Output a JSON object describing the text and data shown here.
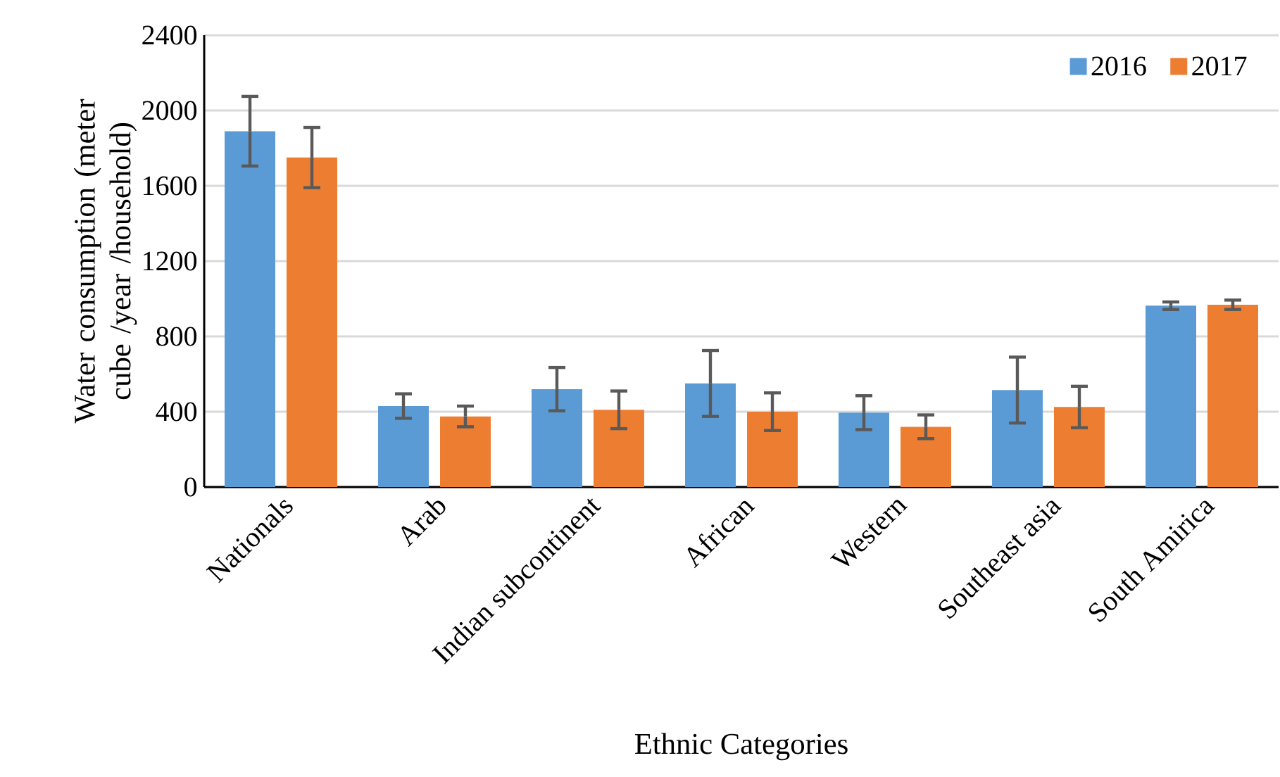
{
  "chart_data": {
    "type": "bar",
    "xlabel": "Ethnic Categories",
    "ylabel": "Water consumption (meter cube /year /household)",
    "categories": [
      "Nationals",
      "Arab",
      "Indian subcontinent",
      "African",
      "Western",
      "Southeast asia",
      "South Amirica"
    ],
    "series": [
      {
        "name": "2016",
        "color": "#5b9bd5",
        "values": [
          1890,
          430,
          520,
          550,
          395,
          515,
          963
        ],
        "errors": [
          185,
          65,
          115,
          175,
          90,
          175,
          20
        ]
      },
      {
        "name": "2017",
        "color": "#ed7d31",
        "values": [
          1750,
          375,
          410,
          400,
          320,
          425,
          968
        ],
        "errors": [
          160,
          55,
          100,
          100,
          63,
          110,
          25
        ]
      }
    ],
    "ylim": [
      0,
      2400
    ],
    "yticks": [
      0,
      400,
      800,
      1200,
      1600,
      2000,
      2400
    ],
    "grid": "y",
    "legend": "top right"
  }
}
